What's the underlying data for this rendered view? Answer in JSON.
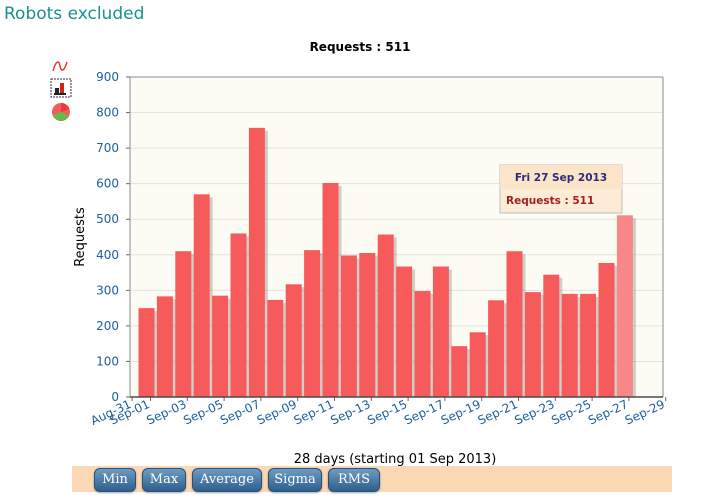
{
  "page": {
    "title": "Robots excluded"
  },
  "toolbar": {
    "icons": [
      "line-chart-icon",
      "bar-chart-icon",
      "pie-chart-icon"
    ]
  },
  "chart_data": {
    "type": "bar",
    "title": "Requests : 511",
    "xlabel": "28 days (starting 01 Sep 2013)",
    "ylabel": "Requests",
    "ylim": [
      0,
      900
    ],
    "yticks": [
      0,
      100,
      200,
      300,
      400,
      500,
      600,
      700,
      800,
      900
    ],
    "grid": true,
    "x_tick_labels": [
      "Aug-31",
      "Sep-01",
      "Sep-03",
      "Sep-05",
      "Sep-07",
      "Sep-09",
      "Sep-11",
      "Sep-13",
      "Sep-15",
      "Sep-17",
      "Sep-19",
      "Sep-21",
      "Sep-23",
      "Sep-25",
      "Sep-27",
      "Sep-29"
    ],
    "categories": [
      "Sep-01",
      "Sep-02",
      "Sep-03",
      "Sep-04",
      "Sep-05",
      "Sep-06",
      "Sep-07",
      "Sep-08",
      "Sep-09",
      "Sep-10",
      "Sep-11",
      "Sep-12",
      "Sep-13",
      "Sep-14",
      "Sep-15",
      "Sep-16",
      "Sep-17",
      "Sep-18",
      "Sep-19",
      "Sep-20",
      "Sep-21",
      "Sep-22",
      "Sep-23",
      "Sep-24",
      "Sep-25",
      "Sep-26",
      "Sep-27"
    ],
    "values": [
      250,
      283,
      410,
      570,
      285,
      460,
      757,
      273,
      317,
      413,
      602,
      398,
      405,
      457,
      367,
      298,
      367,
      143,
      182,
      272,
      410,
      295,
      344,
      290,
      290,
      377,
      511
    ],
    "highlight_index": 26,
    "bar_color": "#f75a5a",
    "highlight_color": "#f88888",
    "tooltip": {
      "date": "Fri 27 Sep 2013",
      "value_text": "Requests : 511"
    }
  },
  "buttons": [
    {
      "label": "Min"
    },
    {
      "label": "Max"
    },
    {
      "label": "Average"
    },
    {
      "label": "Sigma"
    },
    {
      "label": "RMS"
    }
  ]
}
